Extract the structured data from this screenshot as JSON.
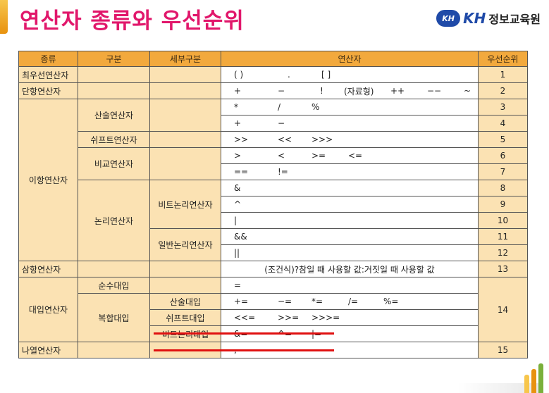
{
  "slide": {
    "title": "연산자 종류와 우선순위"
  },
  "logo": {
    "mark": "KH",
    "name": "KH",
    "text": "정보교육원"
  },
  "table": {
    "headers": [
      "종류",
      "구분",
      "세부구분",
      "연산자",
      "우선순위"
    ],
    "rows": {
      "primary": {
        "kind": "최우선연산자",
        "ops": [
          "( )",
          ".",
          "[ ]"
        ],
        "rank": "1"
      },
      "unary": {
        "kind": "단항연산자",
        "ops": [
          "+",
          "−",
          "!",
          "(자료형)",
          "++",
          "−−",
          "~"
        ],
        "rank": "2"
      },
      "binary": {
        "kind": "이항연산자",
        "arith": {
          "label": "산술연산자",
          "ops1": [
            "*",
            "/",
            "%"
          ],
          "rank1": "3",
          "ops2": [
            "+",
            "−"
          ],
          "rank2": "4"
        },
        "shift": {
          "label": "쉬프트연산자",
          "ops": [
            ">>",
            "<<",
            ">>>"
          ],
          "rank": "5"
        },
        "compare": {
          "label": "비교연산자",
          "ops1": [
            ">",
            "<",
            ">=",
            "<="
          ],
          "rank1": "6",
          "ops2": [
            "==",
            "!="
          ],
          "rank2": "7"
        },
        "logic": {
          "label": "논리연산자",
          "bit": {
            "label": "비트논리연산자",
            "op1": "&",
            "rank1": "8",
            "op2": "^",
            "rank2": "9",
            "op3": "|",
            "rank3": "10"
          },
          "general": {
            "label": "일반논리연산자",
            "op1": "&&",
            "rank1": "11",
            "op2": "||",
            "rank2": "12"
          }
        }
      },
      "ternary": {
        "kind": "삼항연산자",
        "ops": "(조건식)?참일 때 사용할 값:거짓일 때 사용할 값",
        "rank": "13"
      },
      "assign": {
        "kind": "대입연산자",
        "pure": {
          "label": "순수대입",
          "op": "="
        },
        "compound": {
          "label": "복합대입",
          "arith": {
            "label": "산술대입",
            "ops": [
              "+=",
              "−=",
              "*=",
              "/=",
              "%="
            ]
          },
          "shift": {
            "label": "쉬프트대입",
            "ops": [
              "<<=",
              ">>=",
              ">>>="
            ]
          },
          "bit": {
            "label": "비트논리대입",
            "ops": [
              "&=",
              "^=",
              "|="
            ]
          }
        },
        "rank": "14"
      },
      "comma": {
        "kind": "나열연산자",
        "op": ",",
        "rank": "15"
      }
    }
  },
  "colors": {
    "title": "#e1176b",
    "header": "#f2a93d",
    "cell": "#fbe2b3",
    "strike": "#e01010"
  }
}
